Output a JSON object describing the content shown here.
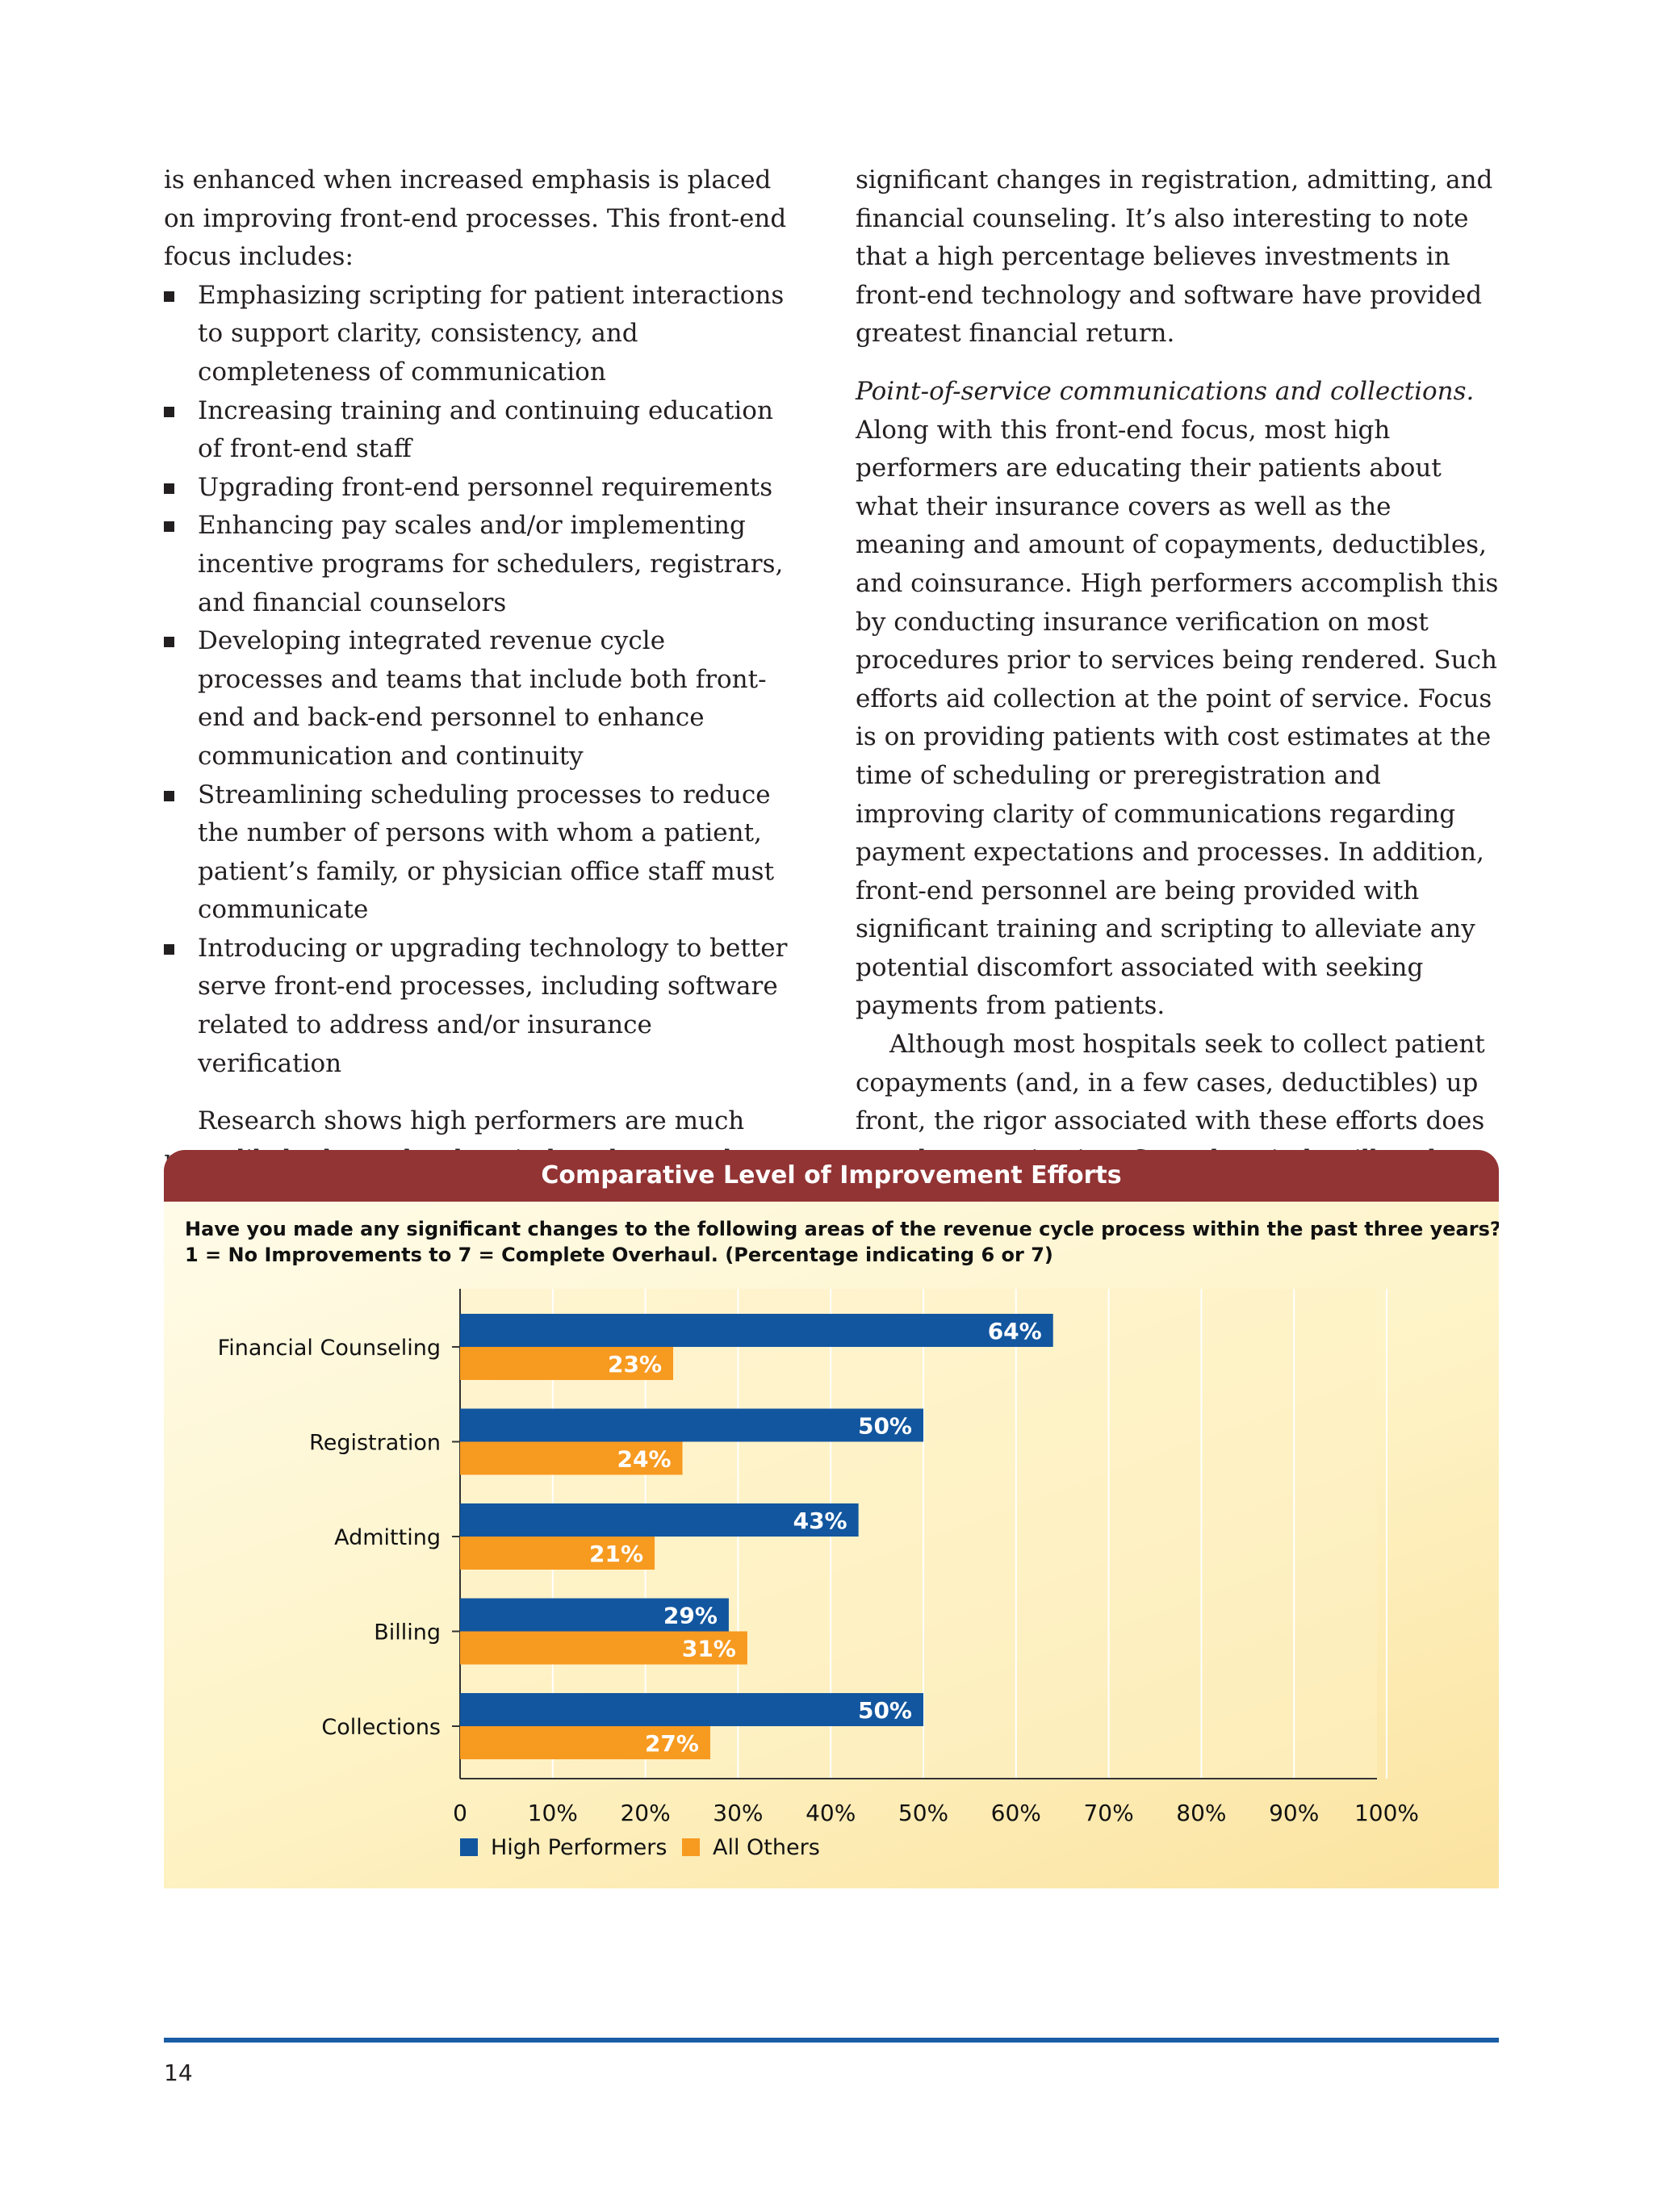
{
  "left_column": {
    "intro": "is enhanced when increased emphasis is placed on improving front-end processes. This front-end focus includes:",
    "bullets": [
      "Emphasizing scripting for patient interactions to support clarity, consistency, and completeness of communication",
      "Increasing training and continuing education of front-end staff",
      "Upgrading front-end personnel requirements",
      "Enhancing pay scales and/or implementing incentive programs for schedulers, registrars, and financial counselors",
      "Developing integrated revenue cycle processes and teams that include both front-end and back-end personnel to enhance communication and continuity",
      "Streamlining scheduling processes to reduce the number of persons with whom a patient, patient’s family, or physician office staff must communicate",
      "Introducing or upgrading technology to better serve front-end processes, including software related to address and/or insurance verification"
    ],
    "closing": "Research shows high performers are much more likely than other hospitals to have made"
  },
  "right_column": {
    "para1": "significant changes in registration, admitting, and financial counseling. It’s also interesting to note that a high percentage believes investments in front-end technology and software have provided greatest financial return.",
    "para2_lead": "Point-of-service communications and collections.",
    "para2_body": " Along with this front-end focus, most high performers are educating their patients about what their insurance covers as well as the meaning and amount of copayments, deductibles, and coinsurance. High performers accomplish this by conducting insurance verification on most procedures prior to services being rendered. Such efforts aid collection at the point of service. Focus is on providing patients with cost estimates at the time of scheduling or preregistration and improving clarity of communications regarding payment expectations and processes. In addition, front-end personnel are being provided with significant training and scripting to alleviate any potential discomfort associated with seeking payments from patients.",
    "para3": "Although most hospitals seek to collect patient copayments (and, in a few cases, deductibles) up front, the rigor associated with these efforts does vary by organization. Some hospitals will seek to postpone"
  },
  "chart_data": {
    "type": "bar",
    "orientation": "horizontal",
    "title": "Comparative Level of Improvement Efforts",
    "subtitle_line1": "Have you made any significant changes to the following areas of the revenue cycle process within the past three years?",
    "subtitle_line2": "1 = No Improvements to 7 = Complete Overhaul.  (Percentage indicating 6 or 7)",
    "categories": [
      "Financial Counseling",
      "Registration",
      "Admitting",
      "Billing",
      "Collections"
    ],
    "series": [
      {
        "name": "High Performers",
        "values": [
          64,
          50,
          43,
          29,
          50
        ],
        "labels": [
          "64%",
          "50%",
          "43%",
          "29%",
          "50%"
        ],
        "color": "#12569f"
      },
      {
        "name": "All Others",
        "values": [
          23,
          24,
          21,
          31,
          27
        ],
        "labels": [
          "23%",
          "24%",
          "21%",
          "31%",
          "27%"
        ],
        "color": "#f79a20"
      }
    ],
    "x_ticks": [
      "0",
      "10%",
      "20%",
      "30%",
      "40%",
      "50%",
      "60%",
      "70%",
      "80%",
      "90%",
      "100%"
    ],
    "xlim": [
      0,
      100
    ],
    "grid": true,
    "legend": "bottom-left",
    "band_color": "#923334"
  },
  "page_number": "14",
  "accent_color": "#1a5da6"
}
